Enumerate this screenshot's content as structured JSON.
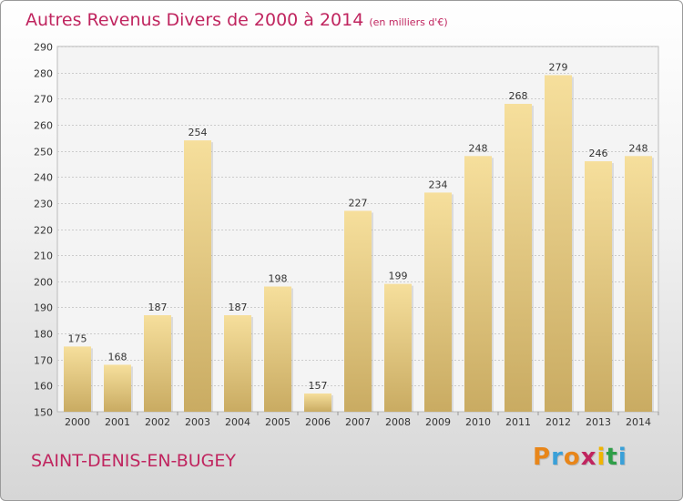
{
  "chart_data": {
    "type": "bar",
    "title": "Autres Revenus Divers de 2000 à 2014",
    "subtitle": "(en milliers d'€)",
    "categories": [
      "2000",
      "2001",
      "2002",
      "2003",
      "2004",
      "2005",
      "2006",
      "2007",
      "2008",
      "2009",
      "2010",
      "2011",
      "2012",
      "2013",
      "2014"
    ],
    "values": [
      175,
      168,
      187,
      254,
      187,
      198,
      157,
      227,
      199,
      234,
      248,
      268,
      279,
      246,
      248
    ],
    "ylim": [
      150,
      290
    ],
    "yticks": [
      150,
      160,
      170,
      180,
      190,
      200,
      210,
      220,
      230,
      240,
      250,
      260,
      270,
      280,
      290
    ],
    "grid": true,
    "legend": "none",
    "xlabel": "",
    "ylabel": ""
  },
  "footer": {
    "location": "SAINT-DENIS-EN-BUGEY",
    "brand": "Proxiti",
    "brand_letters": [
      "P",
      "r",
      "o",
      "x",
      "i",
      "t",
      "i"
    ],
    "brand_colors": [
      "#e8861a",
      "#3aa0d8",
      "#e8861a",
      "#c0255f",
      "#f0b400",
      "#2f9e48",
      "#3aa0d8"
    ]
  },
  "colors": {
    "accent": "#c0255f",
    "bar_light": "#f6df9c",
    "bar_dark": "#c9ab62",
    "grid": "#cccccc"
  }
}
